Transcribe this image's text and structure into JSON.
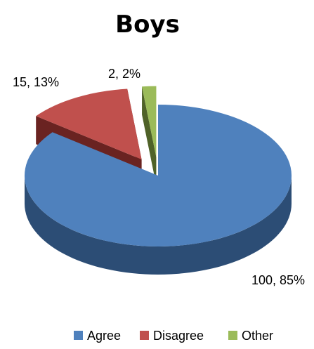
{
  "chart_data": {
    "type": "pie",
    "style": "3d-exploded",
    "title": "Boys",
    "slices": [
      {
        "name": "Agree",
        "value": 100,
        "percent": "85%",
        "label": "100, 85%",
        "color": "#4F81BD",
        "side_color": "#2C4D75",
        "exploded": false
      },
      {
        "name": "Disagree",
        "value": 15,
        "percent": "13%",
        "label": "15, 13%",
        "color": "#C0504D",
        "side_color": "#6A2321",
        "exploded": true
      },
      {
        "name": "Other",
        "value": 2,
        "percent": "2%",
        "label": "2, 2%",
        "color": "#9BBB59",
        "side_color": "#4F6228",
        "exploded": true
      }
    ],
    "legend": {
      "position": "bottom"
    }
  }
}
